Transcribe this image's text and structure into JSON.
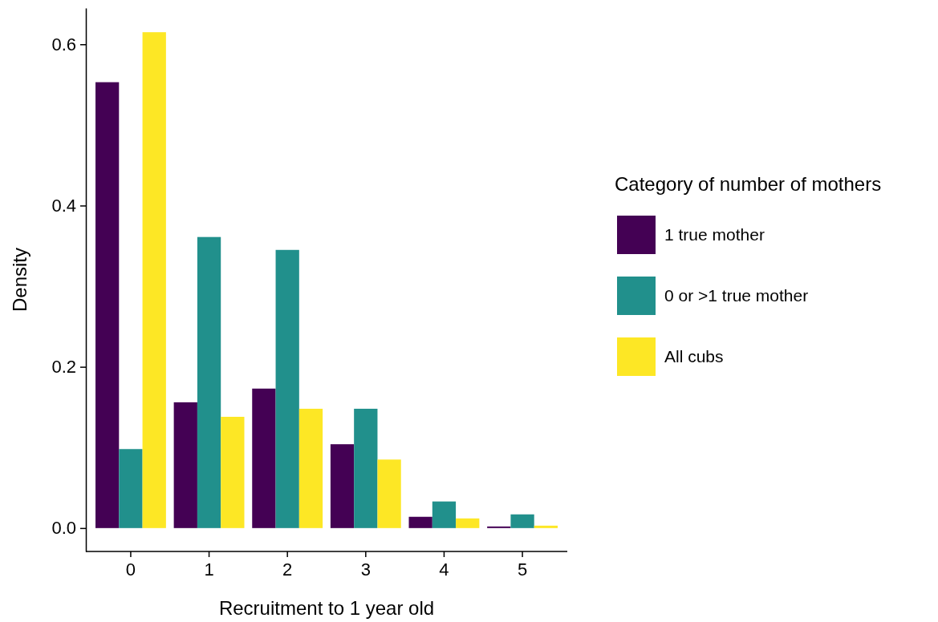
{
  "chart_data": {
    "type": "bar",
    "xlabel": "Recruitment to 1 year old",
    "ylabel": "Density",
    "legend_title": "Category of number of mothers",
    "categories": [
      "0",
      "1",
      "2",
      "3",
      "4",
      "5"
    ],
    "series": [
      {
        "name": "1 true mother",
        "color": "#440154",
        "values": [
          0.553,
          0.156,
          0.173,
          0.104,
          0.014,
          0.002
        ]
      },
      {
        "name": "0 or >1 true mother",
        "color": "#21908c",
        "values": [
          0.098,
          0.361,
          0.345,
          0.148,
          0.033,
          0.017
        ]
      },
      {
        "name": "All cubs",
        "color": "#fde725",
        "values": [
          0.615,
          0.138,
          0.148,
          0.085,
          0.012,
          0.003
        ]
      }
    ],
    "ylim": [
      -0.029,
      0.645
    ],
    "yticks": [
      {
        "value": 0,
        "label": "0.0"
      },
      {
        "value": 0.2,
        "label": "0.2"
      },
      {
        "value": 0.4,
        "label": "0.4"
      },
      {
        "value": 0.6,
        "label": "0.6"
      }
    ],
    "grid": false,
    "legend": "right"
  }
}
